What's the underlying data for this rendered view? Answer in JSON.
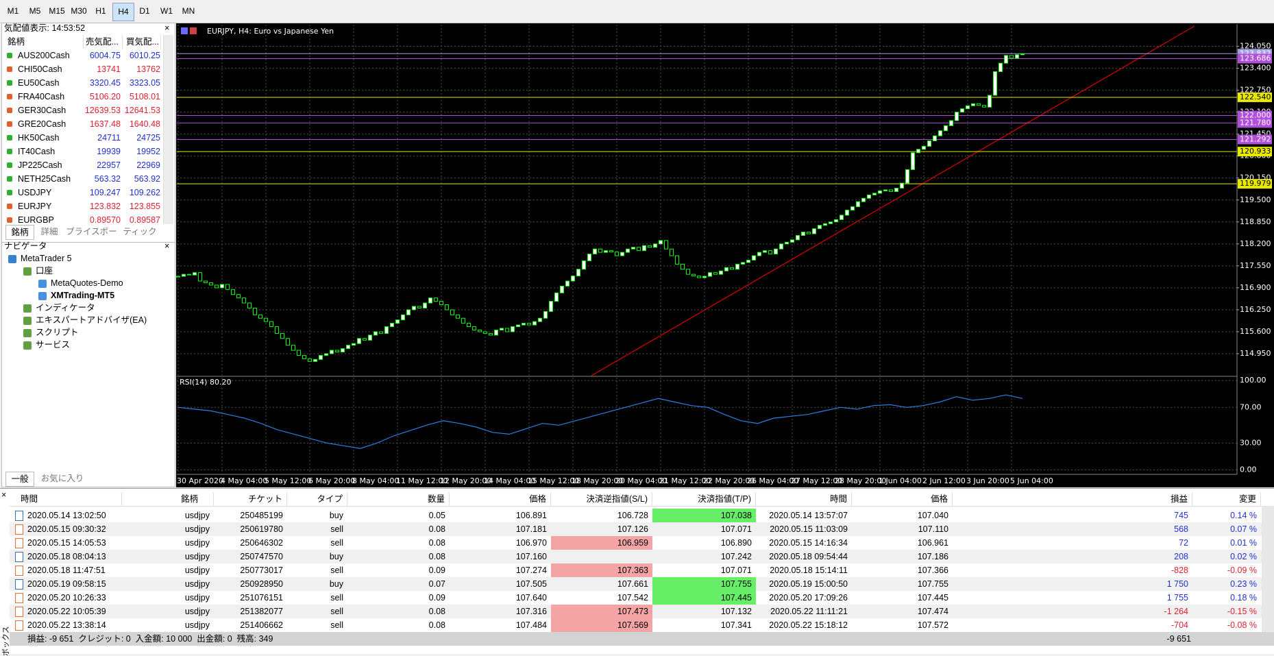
{
  "toolbar": {
    "timeframes": [
      "M1",
      "M5",
      "M15",
      "M30",
      "H1",
      "H4",
      "D1",
      "W1",
      "MN"
    ],
    "active": "H4"
  },
  "market_watch": {
    "title": "気配値表示: 14:53:52",
    "columns": [
      "銘柄",
      "売気配...",
      "買気配..."
    ],
    "rows": [
      {
        "symbol": "AUS200Cash",
        "bid": "6004.75",
        "ask": "6010.25",
        "dir": "up"
      },
      {
        "symbol": "CHI50Cash",
        "bid": "13741",
        "ask": "13762",
        "dir": "down"
      },
      {
        "symbol": "EU50Cash",
        "bid": "3320.45",
        "ask": "3323.05",
        "dir": "up"
      },
      {
        "symbol": "FRA40Cash",
        "bid": "5106.20",
        "ask": "5108.01",
        "dir": "down"
      },
      {
        "symbol": "GER30Cash",
        "bid": "12639.53",
        "ask": "12641.53",
        "dir": "down"
      },
      {
        "symbol": "GRE20Cash",
        "bid": "1637.48",
        "ask": "1640.48",
        "dir": "down"
      },
      {
        "symbol": "HK50Cash",
        "bid": "24711",
        "ask": "24725",
        "dir": "up"
      },
      {
        "symbol": "IT40Cash",
        "bid": "19939",
        "ask": "19952",
        "dir": "up"
      },
      {
        "symbol": "JP225Cash",
        "bid": "22957",
        "ask": "22969",
        "dir": "up"
      },
      {
        "symbol": "NETH25Cash",
        "bid": "563.32",
        "ask": "563.92",
        "dir": "up"
      },
      {
        "symbol": "USDJPY",
        "bid": "109.247",
        "ask": "109.262",
        "dir": "up"
      },
      {
        "symbol": "EURJPY",
        "bid": "123.832",
        "ask": "123.855",
        "dir": "down"
      },
      {
        "symbol": "EURGBP",
        "bid": "0.89570",
        "ask": "0.89587",
        "dir": "down"
      }
    ],
    "tabs": [
      "銘柄",
      "詳細",
      "プライスボード",
      "ティック"
    ]
  },
  "navigator": {
    "title": "ナビゲータ",
    "items": [
      {
        "label": "MetaTrader 5",
        "level": 0
      },
      {
        "label": "口座",
        "level": 1
      },
      {
        "label": "MetaQuotes-Demo",
        "level": 2
      },
      {
        "label": "XMTrading-MT5",
        "level": 2,
        "bold": true
      },
      {
        "label": "インディケータ",
        "level": 1
      },
      {
        "label": "エキスパートアドバイザ(EA)",
        "level": 1
      },
      {
        "label": "スクリプト",
        "level": 1
      },
      {
        "label": "サービス",
        "level": 1
      }
    ],
    "tabs": [
      "一般",
      "お気に入り"
    ]
  },
  "chart": {
    "type": "candlestick",
    "title": "EURJPY, H4:  Euro vs Japanese Yen",
    "up_color": "#ffffff",
    "down_color": "#000000",
    "outline": "#00ff00",
    "grid": true,
    "closes": [
      117.24,
      117.3,
      117.28,
      117.35,
      117.1,
      117.05,
      116.98,
      116.9,
      117.0,
      116.85,
      116.7,
      116.6,
      116.45,
      116.3,
      116.1,
      116.0,
      115.9,
      115.75,
      115.55,
      115.4,
      115.2,
      115.05,
      114.9,
      114.8,
      114.72,
      114.78,
      114.9,
      114.95,
      115.05,
      115.0,
      115.1,
      115.2,
      115.25,
      115.4,
      115.35,
      115.5,
      115.6,
      115.55,
      115.75,
      115.85,
      115.95,
      116.1,
      116.25,
      116.35,
      116.3,
      116.45,
      116.6,
      116.5,
      116.4,
      116.25,
      116.1,
      116.0,
      115.85,
      115.75,
      115.65,
      115.6,
      115.55,
      115.5,
      115.65,
      115.7,
      115.6,
      115.75,
      115.8,
      115.85,
      115.8,
      115.9,
      116.0,
      116.2,
      116.5,
      116.75,
      116.95,
      117.1,
      117.25,
      117.45,
      117.7,
      117.9,
      118.05,
      117.95,
      118.0,
      117.96,
      117.85,
      117.95,
      118.05,
      118.1,
      118.0,
      118.15,
      118.1,
      118.2,
      118.3,
      118.05,
      117.85,
      117.6,
      117.45,
      117.3,
      117.25,
      117.2,
      117.24,
      117.35,
      117.3,
      117.4,
      117.5,
      117.45,
      117.6,
      117.65,
      117.72,
      117.85,
      117.95,
      118.0,
      117.9,
      118.05,
      118.2,
      118.25,
      118.32,
      118.45,
      118.55,
      118.5,
      118.65,
      118.75,
      118.8,
      118.85,
      118.92,
      119.05,
      119.2,
      119.3,
      119.45,
      119.55,
      119.65,
      119.7,
      119.77,
      119.8,
      119.75,
      119.85,
      120.0,
      120.4,
      120.9,
      121.0,
      121.09,
      121.25,
      121.4,
      121.55,
      121.7,
      121.85,
      122.1,
      122.2,
      122.29,
      122.35,
      122.3,
      122.25,
      122.6,
      123.3,
      123.55,
      123.78,
      123.7,
      123.8,
      123.83
    ],
    "ylim": [
      114.3,
      124.69
    ],
    "yticks": [
      {
        "value": 124.05,
        "label": "124.050"
      },
      {
        "value": 123.4,
        "label": "123.400"
      },
      {
        "value": 122.75,
        "label": "122.750"
      },
      {
        "value": 122.1,
        "label": "122.100"
      },
      {
        "value": 121.45,
        "label": "121.450"
      },
      {
        "value": 120.8,
        "label": "120.800"
      },
      {
        "value": 120.15,
        "label": "120.150"
      },
      {
        "value": 119.5,
        "label": "119.500"
      },
      {
        "value": 118.85,
        "label": "118.850"
      },
      {
        "value": 118.2,
        "label": "118.200"
      },
      {
        "value": 117.55,
        "label": "117.550"
      },
      {
        "value": 116.9,
        "label": "116.900"
      },
      {
        "value": 116.25,
        "label": "116.250"
      },
      {
        "value": 115.6,
        "label": "115.600"
      },
      {
        "value": 114.95,
        "label": "114.950"
      }
    ],
    "levels": [
      {
        "value": 123.832,
        "label": "123.832",
        "color": "#a0a0e0"
      },
      {
        "value": 123.686,
        "label": "123.686",
        "color": "#b04fd8"
      },
      {
        "value": 122.54,
        "label": "122.540",
        "color": "#e8e800"
      },
      {
        "value": 122.0,
        "label": "122.000",
        "color": "#b04fd8"
      },
      {
        "value": 121.78,
        "label": "121.780",
        "color": "#b04fd8"
      },
      {
        "value": 121.292,
        "label": "121.292",
        "color": "#b04fd8"
      },
      {
        "value": 120.933,
        "label": "120.933",
        "color": "#e8e800"
      },
      {
        "value": 119.979,
        "label": "119.979",
        "color": "#e8e800"
      }
    ],
    "time_labels": [
      "30 Apr 2020",
      "4 May 04:00",
      "5 May 12:00",
      "6 May 20:00",
      "8 May 04:00",
      "11 May 12:00",
      "12 May 20:00",
      "14 May 04:00",
      "15 May 12:00",
      "18 May 20:00",
      "20 May 04:00",
      "21 May 12:00",
      "22 May 20:00",
      "26 May 04:00",
      "27 May 12:00",
      "28 May 20:00",
      "1 Jun 04:00",
      "2 Jun 12:00",
      "3 Jun 20:00",
      "5 Jun 04:00"
    ],
    "rsi": {
      "label": "RSI(14) 80.20",
      "color": "#2f7fe0",
      "ylim": [
        -5,
        104
      ],
      "yticks": [
        {
          "value": 100,
          "label": "100.00"
        },
        {
          "value": 70,
          "label": "70.00"
        },
        {
          "value": 30,
          "label": "30.00"
        },
        {
          "value": 0,
          "label": "0.00"
        }
      ],
      "values": [
        70,
        68,
        66,
        62,
        58,
        52,
        45,
        40,
        35,
        30,
        27,
        24,
        30,
        38,
        44,
        50,
        55,
        52,
        48,
        42,
        40,
        46,
        52,
        50,
        55,
        60,
        65,
        70,
        75,
        80,
        76,
        72,
        70,
        62,
        55,
        52,
        58,
        60,
        62,
        66,
        70,
        68,
        72,
        73,
        70,
        72,
        76,
        82,
        78,
        80,
        84,
        80
      ]
    }
  },
  "toolbox": {
    "label": "ボックス",
    "columns": [
      "時間",
      "銘柄",
      "チケット",
      "タイプ",
      "数量",
      "価格",
      "決済逆指値(S/L)",
      "決済指値(T/P)",
      "時間",
      "価格",
      "損益",
      "変更"
    ],
    "rows": [
      {
        "cells": [
          "2020.05.14 13:02:50",
          "usdjpy",
          "250485199",
          "buy",
          "0.05",
          "106.891",
          "106.728",
          "107.038",
          "2020.05.14 13:57:07",
          "107.040",
          "745",
          "0.14 %"
        ],
        "hit": "tp"
      },
      {
        "cells": [
          "2020.05.15 09:30:32",
          "usdjpy",
          "250619780",
          "sell",
          "0.08",
          "107.181",
          "107.126",
          "107.071",
          "2020.05.15 11:03:09",
          "107.110",
          "568",
          "0.07 %"
        ]
      },
      {
        "cells": [
          "2020.05.15 14:05:53",
          "usdjpy",
          "250646302",
          "sell",
          "0.08",
          "106.970",
          "106.959",
          "106.890",
          "2020.05.15 14:16:34",
          "106.961",
          "72",
          "0.01 %"
        ],
        "hit": "sl"
      },
      {
        "cells": [
          "2020.05.18 08:04:13",
          "usdjpy",
          "250747570",
          "buy",
          "0.08",
          "107.160",
          null,
          "107.242",
          "2020.05.18 09:54:44",
          "107.186",
          "208",
          "0.02 %"
        ]
      },
      {
        "cells": [
          "2020.05.18 11:47:51",
          "usdjpy",
          "250773017",
          "sell",
          "0.09",
          "107.274",
          "107.363",
          "107.071",
          "2020.05.18 15:14:11",
          "107.366",
          "-828",
          "-0.09 %"
        ],
        "hit": "sl"
      },
      {
        "cells": [
          "2020.05.19 09:58:15",
          "usdjpy",
          "250928950",
          "buy",
          "0.07",
          "107.505",
          "107.661",
          "107.755",
          "2020.05.19 15:00:50",
          "107.755",
          "1 750",
          "0.23 %"
        ],
        "hit": "tp"
      },
      {
        "cells": [
          "2020.05.20 10:26:33",
          "usdjpy",
          "251076151",
          "sell",
          "0.09",
          "107.640",
          "107.542",
          "107.445",
          "2020.05.20 17:09:26",
          "107.445",
          "1 755",
          "0.18 %"
        ],
        "hit": "tp"
      },
      {
        "cells": [
          "2020.05.22 10:05:39",
          "usdjpy",
          "251382077",
          "sell",
          "0.08",
          "107.316",
          "107.473",
          "107.132",
          "2020.05.22 11:11:21",
          "107.474",
          "-1 264",
          "-0.15 %"
        ],
        "hit": "sl"
      },
      {
        "cells": [
          "2020.05.22 13:38:14",
          "usdjpy",
          "251406662",
          "sell",
          "0.08",
          "107.484",
          "107.569",
          "107.341",
          "2020.05.22 15:18:12",
          "107.572",
          "-704",
          "-0.08 %"
        ],
        "hit": "sl"
      }
    ],
    "summary": "損益: -9 651  クレジット: 0  入金額: 10 000  出金額: 0  残高: 349",
    "total": "-9 651"
  }
}
